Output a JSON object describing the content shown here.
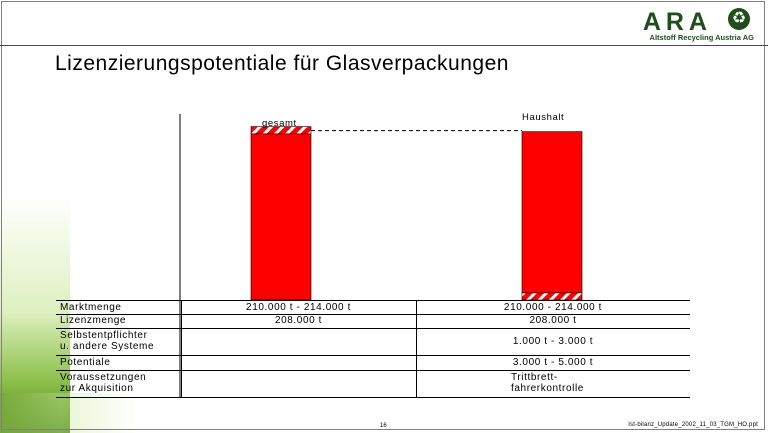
{
  "logo": {
    "name": "ARA",
    "subtitle": "Altstoff Recycling Austria AG",
    "symbol": "♻"
  },
  "title": "Lizenzierungspotentiale für Glasverpackungen",
  "chart_data": {
    "type": "bar",
    "stacked": true,
    "categories": [
      "gesamt",
      "Haushalt"
    ],
    "series": [
      {
        "values": [
          208000,
          208000
        ],
        "fill": "solid",
        "color": "#ff0000"
      },
      {
        "values": [
          6000,
          6000
        ],
        "fill": "hatched",
        "color": "#ff0000"
      }
    ],
    "hatched_segment_position": [
      "top",
      "bottom"
    ],
    "reference_line": "dashed line connecting top of gesamt bar to Haushalt bar",
    "colors": {
      "bar": "#ff0000",
      "hatch": "#ffffff",
      "frame": "#000000"
    }
  },
  "table": {
    "rows": [
      {
        "label": "Marktmenge",
        "gesamt": "210.000 t - 214.000  t",
        "haushalt": "210.000 - 214.000 t"
      },
      {
        "label": "Lizenzmenge",
        "gesamt": "208.000 t",
        "haushalt": "208.000 t"
      },
      {
        "label": "Selbstentpflichter\nu. andere Systeme",
        "gesamt": "",
        "haushalt": "1.000 t - 3.000 t"
      },
      {
        "label": "Potentiale",
        "gesamt": "",
        "haushalt": "3.000 t - 5.000 t"
      },
      {
        "label": "Voraussetzungen\nzur Akquisition",
        "gesamt": "",
        "haushalt": "Trittbrett-\nfahrerkontrolle"
      }
    ]
  },
  "footer": {
    "page": "16",
    "file": "Ist-bilanz_Update_2002_11_03_TGM_HO.ppt"
  }
}
